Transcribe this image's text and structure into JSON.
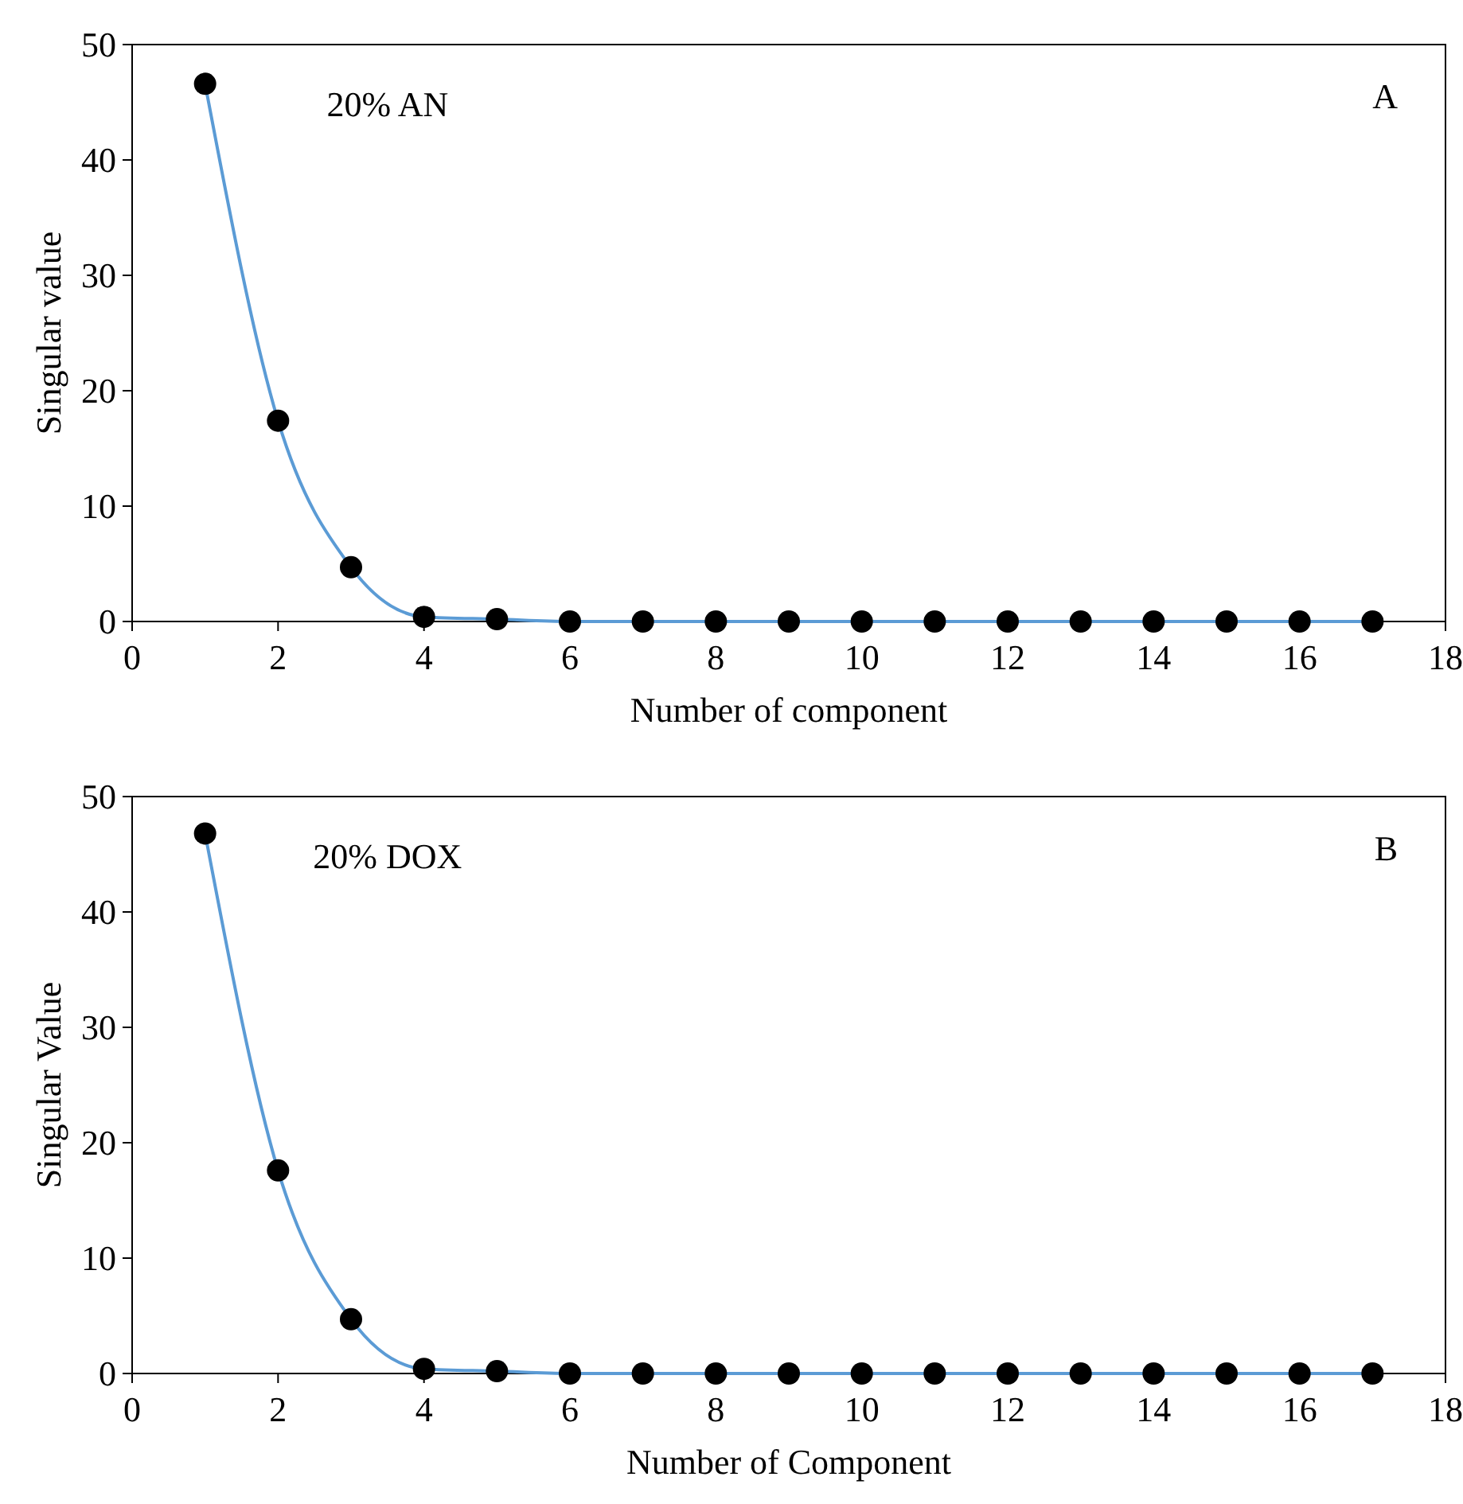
{
  "chart_data": [
    {
      "type": "line",
      "xlabel": "Number of component",
      "ylabel": "Singular value",
      "annotations": [
        "20% AN",
        "A"
      ],
      "x": [
        1,
        2,
        3,
        4,
        5,
        6,
        7,
        8,
        9,
        10,
        11,
        12,
        13,
        14,
        15,
        16,
        17
      ],
      "series": [
        {
          "color": "#5b9bd5",
          "values": [
            46.6,
            17.4,
            4.7,
            0.4,
            0.2,
            0,
            0,
            0,
            0,
            0,
            0,
            0,
            0,
            0,
            0,
            0,
            0
          ]
        }
      ],
      "xlim": [
        0,
        18
      ],
      "xticks": [
        0,
        2,
        4,
        6,
        8,
        10,
        12,
        14,
        16,
        18
      ],
      "ylim": [
        0,
        50
      ],
      "yticks": [
        0,
        10,
        20,
        30,
        40,
        50
      ],
      "grid": false,
      "marker": "circle",
      "line_style": "solid"
    },
    {
      "type": "line",
      "xlabel": "Number of Component",
      "ylabel": "Singular Value",
      "annotations": [
        "20% DOX",
        "B"
      ],
      "x": [
        1,
        2,
        3,
        4,
        5,
        6,
        7,
        8,
        9,
        10,
        11,
        12,
        13,
        14,
        15,
        16,
        17
      ],
      "series": [
        {
          "color": "#5b9bd5",
          "values": [
            46.8,
            17.6,
            4.7,
            0.4,
            0.2,
            0,
            0,
            0,
            0,
            0,
            0,
            0,
            0,
            0,
            0,
            0,
            0
          ]
        }
      ],
      "xlim": [
        0,
        18
      ],
      "xticks": [
        0,
        2,
        4,
        6,
        8,
        10,
        12,
        14,
        16,
        18
      ],
      "ylim": [
        0,
        50
      ],
      "yticks": [
        0,
        10,
        20,
        30,
        40,
        50
      ],
      "grid": false,
      "marker": "circle",
      "line_style": "solid"
    }
  ]
}
